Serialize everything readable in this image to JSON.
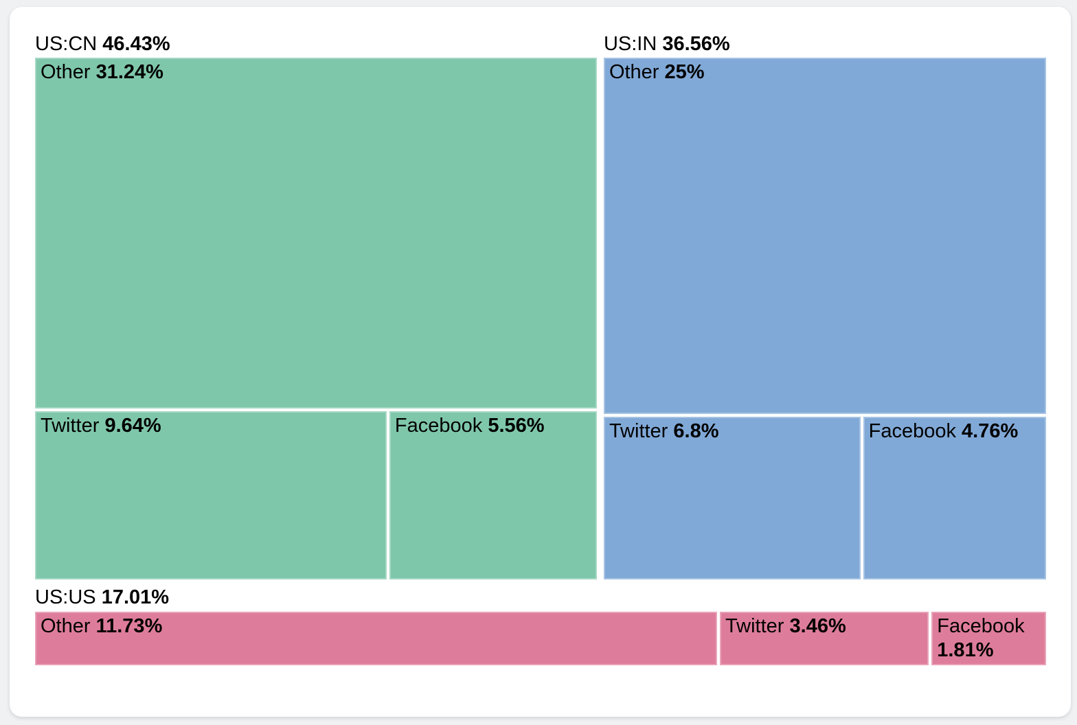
{
  "colors": {
    "page_background": "#eff1f3",
    "card_background": "#ffffff",
    "text": "#000000",
    "us_cn_green": "#7fc7ab",
    "us_in_blue": "#81a9d7",
    "us_us_pink": "#de7d9b"
  },
  "chart_data": {
    "type": "treemap",
    "title": "",
    "legend": "none",
    "layout_hint": "US:CN and US:IN groups side-by-side in top row (Other tile above a Twitter/Facebook row); US:US group is a full-width strip at bottom with Other, Twitter, Facebook left-to-right; white gaps between tiles; group header label above each group",
    "groups": [
      {
        "id": "us-cn",
        "label": "US:CN",
        "share_display": "46.43%",
        "value": 46.43,
        "color": "#7fc7ab",
        "children": [
          {
            "id": "other",
            "label": "Other",
            "share_display": "31.24%",
            "value": 31.24
          },
          {
            "id": "twitter",
            "label": "Twitter",
            "share_display": "9.64%",
            "value": 9.64
          },
          {
            "id": "facebook",
            "label": "Facebook",
            "share_display": "5.56%",
            "value": 5.56
          }
        ]
      },
      {
        "id": "us-in",
        "label": "US:IN",
        "share_display": "36.56%",
        "value": 36.56,
        "color": "#81a9d7",
        "children": [
          {
            "id": "other",
            "label": "Other",
            "share_display": "25%",
            "value": 25.0
          },
          {
            "id": "twitter",
            "label": "Twitter",
            "share_display": "6.8%",
            "value": 6.8
          },
          {
            "id": "facebook",
            "label": "Facebook",
            "share_display": "4.76%",
            "value": 4.76
          }
        ]
      },
      {
        "id": "us-us",
        "label": "US:US",
        "share_display": "17.01%",
        "value": 17.01,
        "color": "#de7d9b",
        "children": [
          {
            "id": "other",
            "label": "Other",
            "share_display": "11.73%",
            "value": 11.73
          },
          {
            "id": "twitter",
            "label": "Twitter",
            "share_display": "3.46%",
            "value": 3.46
          },
          {
            "id": "facebook",
            "label": "Facebook",
            "share_display": "1.81%",
            "value": 1.81
          }
        ]
      }
    ]
  }
}
